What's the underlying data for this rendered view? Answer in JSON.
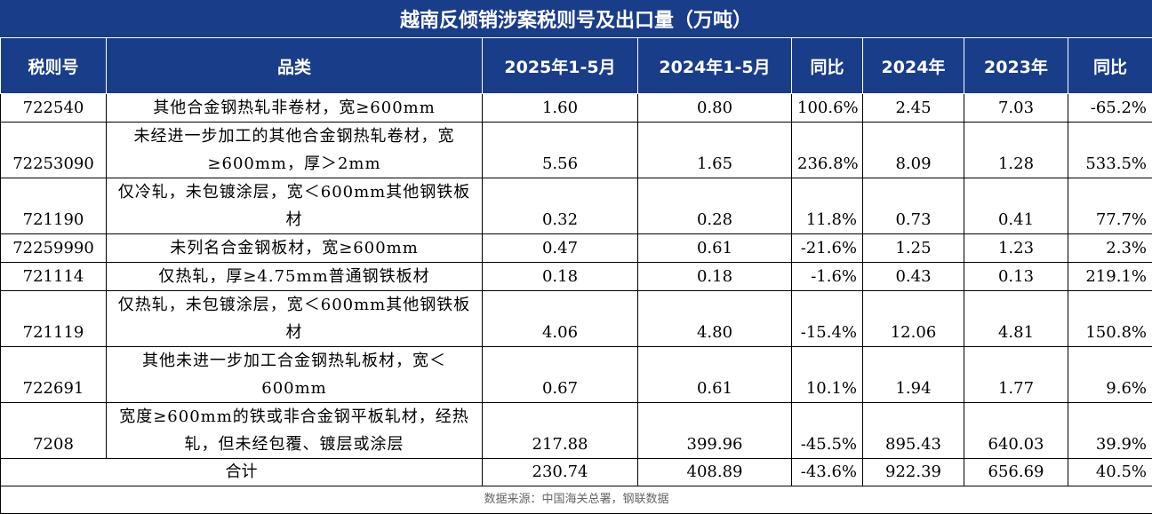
{
  "title": "越南反倾销涉案税则号及出口量（万吨）",
  "headers": [
    "税则号",
    "品类",
    "2025年1-5月",
    "2024年1-5月",
    "同比",
    "2024年",
    "2023年",
    "同比"
  ],
  "rows": [
    {
      "code": "722540",
      "item": "其他合金钢热轧非卷材，宽≥600mm",
      "v2025": "1.60",
      "v2024p": "0.80",
      "yoy1": "100.6%",
      "y2024": "2.45",
      "y2023": "7.03",
      "yoy2": "-65.2%"
    },
    {
      "code": "72253090",
      "item": "未经进一步加工的其他合金钢热轧卷材，宽≥600mm，厚＞2mm",
      "v2025": "5.56",
      "v2024p": "1.65",
      "yoy1": "236.8%",
      "y2024": "8.09",
      "y2023": "1.28",
      "yoy2": "533.5%"
    },
    {
      "code": "721190",
      "item": "仅冷轧，未包镀涂层，宽＜600mm其他钢铁板材",
      "v2025": "0.32",
      "v2024p": "0.28",
      "yoy1": "11.8%",
      "y2024": "0.73",
      "y2023": "0.41",
      "yoy2": "77.7%"
    },
    {
      "code": "72259990",
      "item": "未列名合金钢板材，宽≥600mm",
      "v2025": "0.47",
      "v2024p": "0.61",
      "yoy1": "-21.6%",
      "y2024": "1.25",
      "y2023": "1.23",
      "yoy2": "2.3%"
    },
    {
      "code": "721114",
      "item": "仅热轧，厚≥4.75mm普通钢铁板材",
      "v2025": "0.18",
      "v2024p": "0.18",
      "yoy1": "-1.6%",
      "y2024": "0.43",
      "y2023": "0.13",
      "yoy2": "219.1%"
    },
    {
      "code": "721119",
      "item": "仅热轧，未包镀涂层，宽＜600mm其他钢铁板材",
      "v2025": "4.06",
      "v2024p": "4.80",
      "yoy1": "-15.4%",
      "y2024": "12.06",
      "y2023": "4.81",
      "yoy2": "150.8%"
    },
    {
      "code": "722691",
      "item": "其他未进一步加工合金钢热轧板材，宽＜600mm",
      "v2025": "0.67",
      "v2024p": "0.61",
      "yoy1": "10.1%",
      "y2024": "1.94",
      "y2023": "1.77",
      "yoy2": "9.6%"
    },
    {
      "code": "7208",
      "item": "宽度≥600mm的铁或非合金钢平板轧材，经热轧，但未经包覆、镀层或涂层",
      "v2025": "217.88",
      "v2024p": "399.96",
      "yoy1": "-45.5%",
      "y2024": "895.43",
      "y2023": "640.03",
      "yoy2": "39.9%"
    }
  ],
  "total": {
    "label": "合计",
    "v2025": "230.74",
    "v2024p": "408.89",
    "yoy1": "-43.6%",
    "y2024": "922.39",
    "y2023": "656.69",
    "yoy2": "40.5%"
  },
  "source": "数据来源：中国海关总署，钢联数据"
}
